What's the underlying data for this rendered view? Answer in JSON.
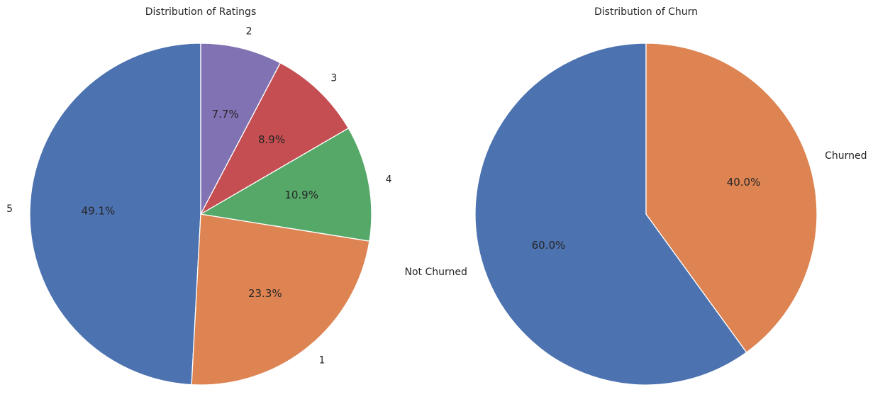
{
  "chart_data": [
    {
      "type": "pie",
      "title": "Distribution of Ratings",
      "start_angle_deg": 90,
      "direction": "counterclockwise",
      "slices": [
        {
          "label": "5",
          "value": 49.1,
          "pct_label": "49.1%",
          "color": "#4c72b0"
        },
        {
          "label": "1",
          "value": 23.3,
          "pct_label": "23.3%",
          "color": "#dd8452"
        },
        {
          "label": "4",
          "value": 10.9,
          "pct_label": "10.9%",
          "color": "#55a868"
        },
        {
          "label": "3",
          "value": 8.9,
          "pct_label": "8.9%",
          "color": "#c44e52"
        },
        {
          "label": "2",
          "value": 7.7,
          "pct_label": "7.7%",
          "color": "#8172b3"
        }
      ]
    },
    {
      "type": "pie",
      "title": "Distribution of Churn",
      "start_angle_deg": 90,
      "direction": "counterclockwise",
      "slices": [
        {
          "label": "Not Churned",
          "value": 60.0,
          "pct_label": "60.0%",
          "color": "#4c72b0"
        },
        {
          "label": "Churned",
          "value": 40.0,
          "pct_label": "40.0%",
          "color": "#dd8452"
        }
      ]
    }
  ]
}
